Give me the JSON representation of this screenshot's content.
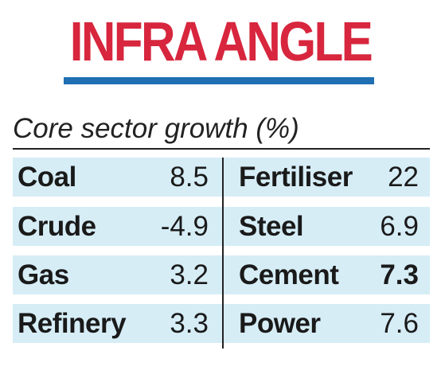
{
  "headline": "INFRA ANGLE",
  "colors": {
    "headline": "#d7263d",
    "rule": "#1f6fb2",
    "row_band": "#d6edf6"
  },
  "chart_data": {
    "type": "table",
    "title": "Core sector growth (%)",
    "columns": [
      [
        {
          "sector": "Coal",
          "value": "8.5"
        },
        {
          "sector": "Crude",
          "value": "-4.9"
        },
        {
          "sector": "Gas",
          "value": "3.2"
        },
        {
          "sector": "Refinery",
          "value": "3.3"
        }
      ],
      [
        {
          "sector": "Fertiliser",
          "value": "22"
        },
        {
          "sector": "Steel",
          "value": "6.9"
        },
        {
          "sector": "Cement",
          "value": "7.3",
          "emphasis": true
        },
        {
          "sector": "Power",
          "value": "7.6"
        }
      ]
    ]
  }
}
